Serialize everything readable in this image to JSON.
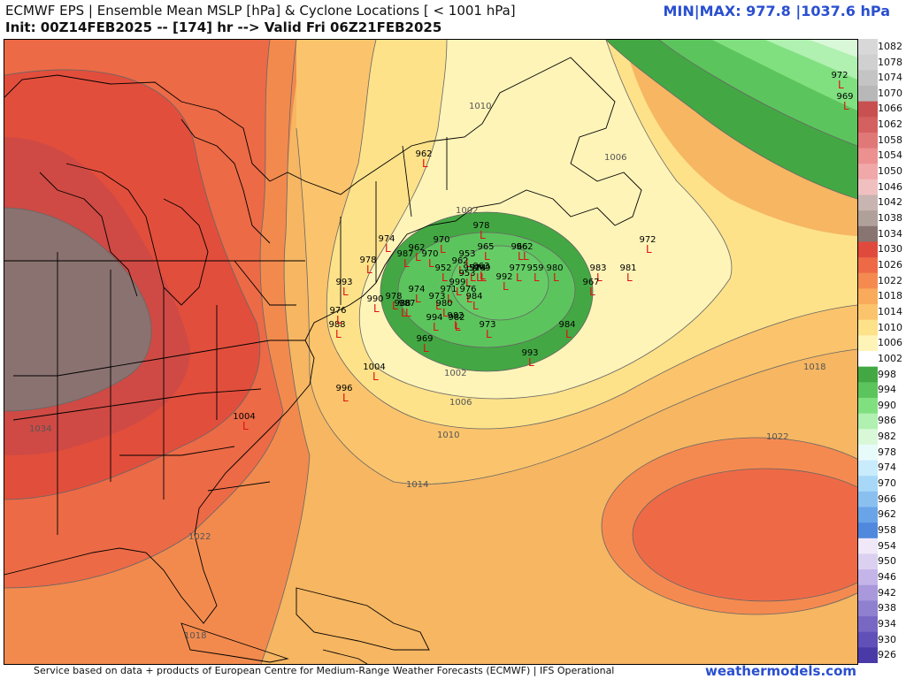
{
  "header": {
    "title": "ECMWF EPS | Ensemble Mean MSLP [hPa] & Cyclone Locations [ < 1001 hPa]",
    "init": "Init: 00Z14FEB2025 -- [174] hr --> Valid Fri 06Z21FEB2025",
    "minmax": "MIN|MAX: 977.8 |1037.6 hPa"
  },
  "footer": {
    "credit": "Service based on data + products of European Centre for Medium-Range Weather Forecasts (ECMWF) | IFS Operational",
    "site": "weathermodels.com"
  },
  "colorbar": {
    "levels": [
      "1082",
      "1078",
      "1074",
      "1070",
      "1066",
      "1062",
      "1058",
      "1054",
      "1050",
      "1046",
      "1042",
      "1038",
      "1034",
      "1030",
      "1026",
      "1022",
      "1018",
      "1014",
      "1010",
      "1006",
      "1002",
      "998",
      "994",
      "990",
      "986",
      "982",
      "978",
      "974",
      "970",
      "966",
      "962",
      "958",
      "954",
      "950",
      "946",
      "942",
      "938",
      "934",
      "930",
      "926"
    ],
    "colors": [
      "#d8d8d8",
      "#d0d0d0",
      "#c4c4c4",
      "#b8b8b8",
      "#c85050",
      "#d46060",
      "#e07878",
      "#ec9090",
      "#f0a8a8",
      "#f0c0c0",
      "#c8b4b0",
      "#b0a09a",
      "#887470",
      "#e04a3c",
      "#ee6a46",
      "#f58a50",
      "#f9aa5a",
      "#fbc46c",
      "#fde28a",
      "#fff4b8",
      "#ffffff",
      "#43a843",
      "#5cc45c",
      "#80e080",
      "#b0f0b0",
      "#d8f8d8",
      "#e8fbfb",
      "#c8ecfc",
      "#a8d8f8",
      "#8ac0f0",
      "#6aa4e8",
      "#4f88dc",
      "#f0e8f8",
      "#dcd0f0",
      "#c4b4e8",
      "#aa98dc",
      "#9080d0",
      "#7868c4",
      "#6050b8",
      "#4a3aa8"
    ]
  },
  "map": {
    "isobar_labels": [
      "1010",
      "1006",
      "1002",
      "1002",
      "1006",
      "1010",
      "1014",
      "1018",
      "1022",
      "1034",
      "1022",
      "1018"
    ],
    "cyclones": [
      {
        "v": "972"
      },
      {
        "v": "969"
      },
      {
        "v": "962"
      },
      {
        "v": "972"
      },
      {
        "v": "978"
      },
      {
        "v": "970"
      },
      {
        "v": "965"
      },
      {
        "v": "962"
      },
      {
        "v": "966"
      },
      {
        "v": "987"
      },
      {
        "v": "974"
      },
      {
        "v": "962"
      },
      {
        "v": "970"
      },
      {
        "v": "978"
      },
      {
        "v": "953"
      },
      {
        "v": "962"
      },
      {
        "v": "952"
      },
      {
        "v": "974"
      },
      {
        "v": "969"
      },
      {
        "v": "974"
      },
      {
        "v": "999"
      },
      {
        "v": "953"
      },
      {
        "v": "977"
      },
      {
        "v": "959"
      },
      {
        "v": "980"
      },
      {
        "v": "983"
      },
      {
        "v": "981"
      },
      {
        "v": "967"
      },
      {
        "v": "971"
      },
      {
        "v": "992"
      },
      {
        "v": "976"
      },
      {
        "v": "993"
      },
      {
        "v": "987"
      },
      {
        "v": "990"
      },
      {
        "v": "978"
      },
      {
        "v": "973"
      },
      {
        "v": "984"
      },
      {
        "v": "982"
      },
      {
        "v": "980"
      },
      {
        "v": "988"
      },
      {
        "v": "976"
      },
      {
        "v": "994"
      },
      {
        "v": "982"
      },
      {
        "v": "988"
      },
      {
        "v": "969"
      },
      {
        "v": "973"
      },
      {
        "v": "984"
      },
      {
        "v": "993"
      },
      {
        "v": "1004"
      },
      {
        "v": "996"
      },
      {
        "v": "1004"
      },
      {
        "v": "952"
      },
      {
        "v": "963"
      }
    ]
  }
}
